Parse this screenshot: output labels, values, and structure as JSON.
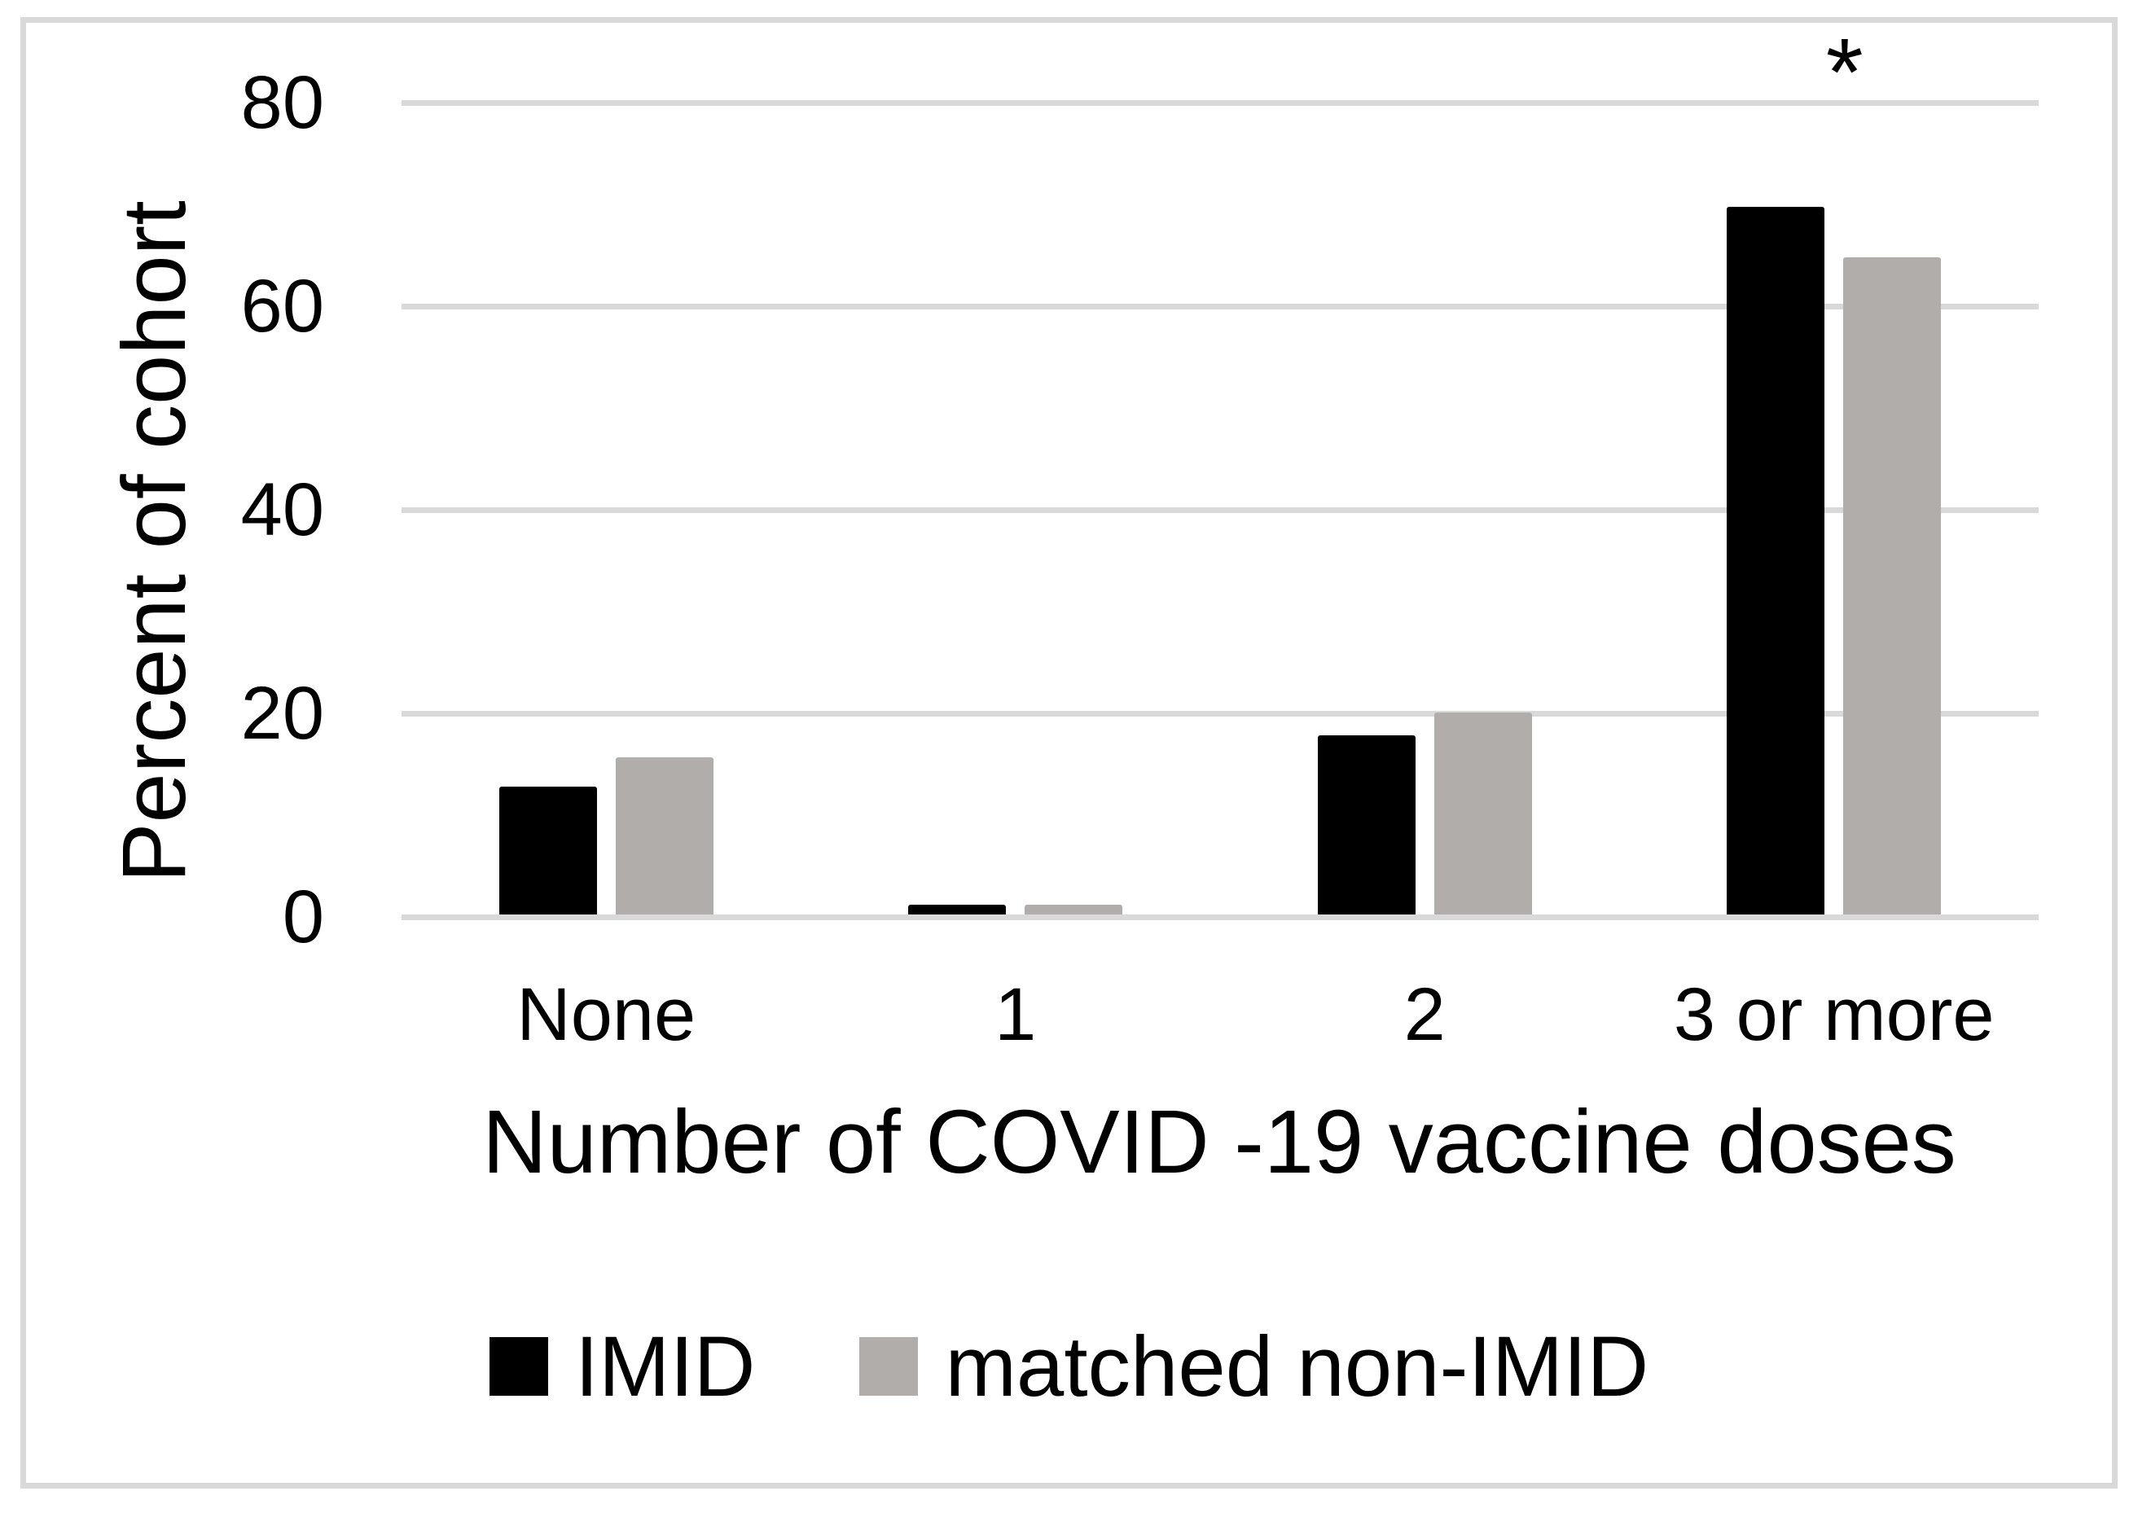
{
  "chart_data": {
    "type": "bar",
    "categories": [
      "None",
      "1",
      "2",
      "3 or more"
    ],
    "series": [
      {
        "name": "IMID",
        "color": "#000000",
        "values": [
          12.5,
          0.9,
          17.6,
          69.5
        ]
      },
      {
        "name": "matched non-IMID",
        "color": "#b0adab",
        "values": [
          15.4,
          0.9,
          19.8,
          64.5
        ]
      }
    ],
    "xlabel": "Number of COVID -19 vaccine doses",
    "ylabel": "Percent of cohort",
    "ylim": [
      0,
      80
    ],
    "yticks": [
      0,
      20,
      40,
      60,
      80
    ],
    "grid": true,
    "legend_position": "bottom-center",
    "annotations": [
      {
        "text": "*",
        "category": "3 or more"
      }
    ]
  },
  "colors": {
    "imid_bar": "#000000",
    "non_imid_bar": "#b0adab",
    "gridline": "#d9d9d9",
    "figure_border": "#d9d9d9",
    "text": "#000000",
    "background": "#ffffff"
  }
}
